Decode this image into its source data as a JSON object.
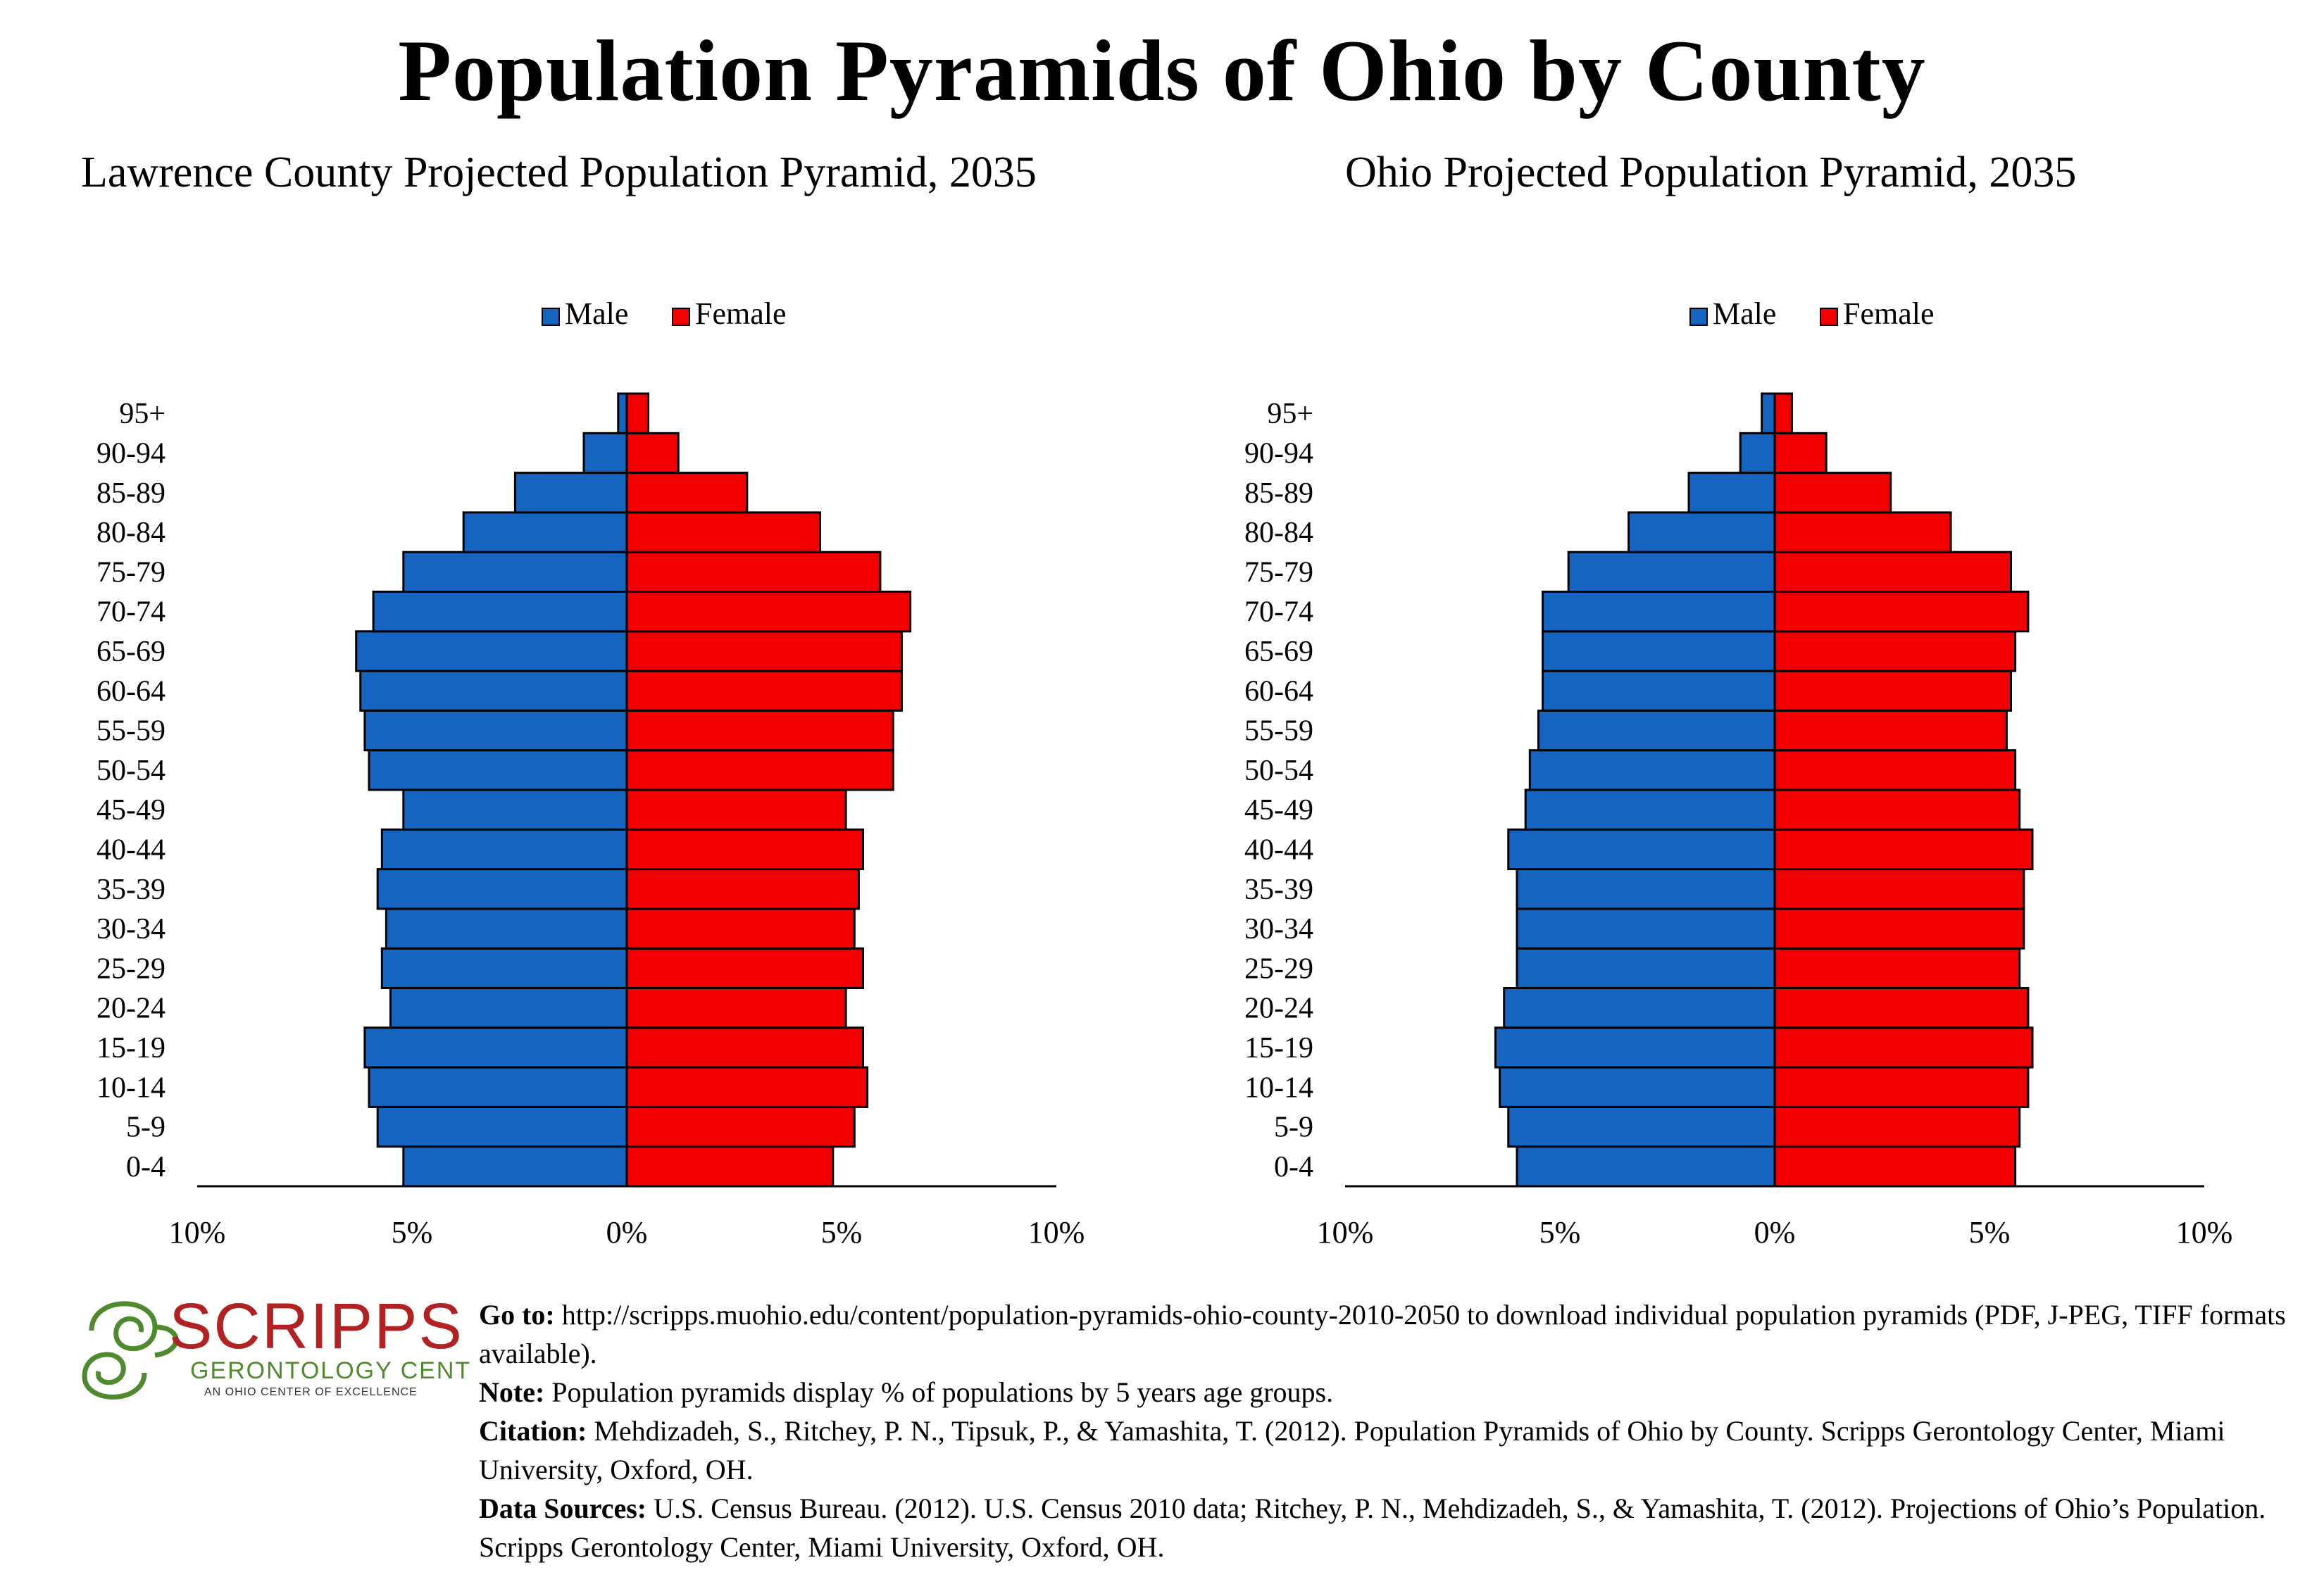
{
  "header": {
    "title": "Population Pyramids of Ohio by County"
  },
  "legend": {
    "male": "Male",
    "female": "Female"
  },
  "colors": {
    "male": "#1565C0",
    "female": "#F20000"
  },
  "x_tick_labels": [
    "10%",
    "5%",
    "0%",
    "5%",
    "10%"
  ],
  "chart_data": [
    {
      "type": "bar",
      "title": "Lawrence County Projected Population Pyramid, 2035",
      "categories": [
        "0-4",
        "5-9",
        "10-14",
        "15-19",
        "20-24",
        "25-29",
        "30-34",
        "35-39",
        "40-44",
        "45-49",
        "50-54",
        "55-59",
        "60-64",
        "65-69",
        "70-74",
        "75-79",
        "80-84",
        "85-89",
        "90-94",
        "95+"
      ],
      "series": [
        {
          "name": "Male",
          "values": [
            5.2,
            5.8,
            6.0,
            6.1,
            5.5,
            5.7,
            5.6,
            5.8,
            5.7,
            5.2,
            6.0,
            6.1,
            6.2,
            6.3,
            5.9,
            5.2,
            3.8,
            2.6,
            1.0,
            0.2
          ]
        },
        {
          "name": "Female",
          "values": [
            4.8,
            5.3,
            5.6,
            5.5,
            5.1,
            5.5,
            5.3,
            5.4,
            5.5,
            5.1,
            6.2,
            6.2,
            6.4,
            6.4,
            6.6,
            5.9,
            4.5,
            2.8,
            1.2,
            0.5
          ]
        }
      ],
      "xlim": [
        -10,
        10
      ]
    },
    {
      "type": "bar",
      "title": "Ohio Projected Population Pyramid, 2035",
      "categories": [
        "0-4",
        "5-9",
        "10-14",
        "15-19",
        "20-24",
        "25-29",
        "30-34",
        "35-39",
        "40-44",
        "45-49",
        "50-54",
        "55-59",
        "60-64",
        "65-69",
        "70-74",
        "75-79",
        "80-84",
        "85-89",
        "90-94",
        "95+"
      ],
      "series": [
        {
          "name": "Male",
          "values": [
            6.0,
            6.2,
            6.4,
            6.5,
            6.3,
            6.0,
            6.0,
            6.0,
            6.2,
            5.8,
            5.7,
            5.5,
            5.4,
            5.4,
            5.4,
            4.8,
            3.4,
            2.0,
            0.8,
            0.3
          ]
        },
        {
          "name": "Female",
          "values": [
            5.6,
            5.7,
            5.9,
            6.0,
            5.9,
            5.7,
            5.8,
            5.8,
            6.0,
            5.7,
            5.6,
            5.4,
            5.5,
            5.6,
            5.9,
            5.5,
            4.1,
            2.7,
            1.2,
            0.4
          ]
        }
      ],
      "xlim": [
        -10,
        10
      ]
    }
  ],
  "footer": {
    "logo": {
      "name": "SCRIPPS",
      "line2": "GERONTOLOGY CENTER",
      "line3": "AN OHIO CENTER OF EXCELLENCE"
    },
    "goto_label": "Go to:",
    "goto_text": "http://scripps.muohio.edu/content/population-pyramids-ohio-county-2010-2050 to download individual population pyramids (PDF, J-PEG, TIFF formats available).",
    "note_label": "Note:",
    "note_text": "Population pyramids display % of populations by 5 years age groups.",
    "citation_label": "Citation:",
    "citation_text": "Mehdizadeh, S., Ritchey, P. N., Tipsuk, P., & Yamashita, T. (2012). Population Pyramids of Ohio by County. Scripps Gerontology Center, Miami University, Oxford, OH.",
    "sources_label": "Data Sources:",
    "sources_text": "U.S. Census Bureau. (2012). U.S. Census 2010 data; Ritchey, P. N., Mehdizadeh, S., & Yamashita, T. (2012). Projections of Ohio’s Population. Scripps Gerontology Center, Miami University, Oxford, OH."
  }
}
